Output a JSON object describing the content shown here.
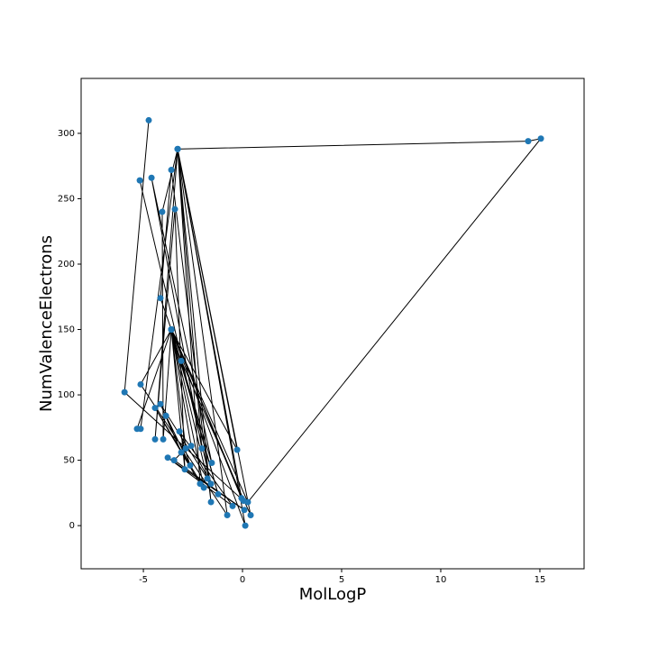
{
  "chart_data": {
    "type": "line",
    "x_label": "MolLogP",
    "y_label": "NumValenceElectrons",
    "x": [
      -4.73,
      -5.95,
      0.05,
      -3.59,
      0.27,
      15.05,
      14.41,
      -3.27,
      -0.27,
      -3.59,
      -5.32,
      -5.14,
      -3.27,
      -2.05,
      -4.59,
      -1.55,
      -3.59,
      -0.05,
      -3.27,
      -1.59,
      -3.59,
      -4.14,
      -3.59,
      0.14,
      -3.27,
      -4.41,
      -3.41,
      -2.91,
      -3.59,
      -5.14,
      -0.77,
      -3.27,
      -4.05,
      -4.0,
      -3.59,
      -1.23,
      -3.09,
      0.41,
      -3.27,
      -2.14,
      -4.41,
      -1.95,
      -3.59,
      -1.77,
      -4.14,
      -3.09,
      -3.86,
      -2.64,
      -3.18,
      -0.5,
      -3.77,
      0.09,
      -3.45,
      -2.86,
      -3.59,
      -2.59,
      -1.59,
      -5.18
    ],
    "series": [
      {
        "color": "#1f77b4",
        "line_color": "#000000",
        "values": [
          310,
          102,
          19,
          150,
          18,
          296,
          294,
          288,
          58,
          150,
          74,
          74,
          288,
          59,
          266,
          48,
          150,
          21,
          288,
          18,
          272,
          174,
          150,
          0,
          288,
          66,
          242,
          43,
          150,
          108,
          8,
          288,
          240,
          66,
          150,
          24,
          126,
          8,
          288,
          32,
          90,
          29,
          150,
          36,
          93,
          56,
          84,
          46,
          72,
          15,
          52,
          12,
          50,
          59,
          150,
          61,
          32,
          264
        ]
      }
    ],
    "xlim": [
      -8.14,
      17.23
    ],
    "xticks": [
      -5,
      0,
      5,
      10,
      15
    ],
    "ylim": [
      -33,
      342
    ],
    "yticks": [
      0,
      50,
      100,
      150,
      200,
      250,
      300
    ],
    "grid": false
  }
}
